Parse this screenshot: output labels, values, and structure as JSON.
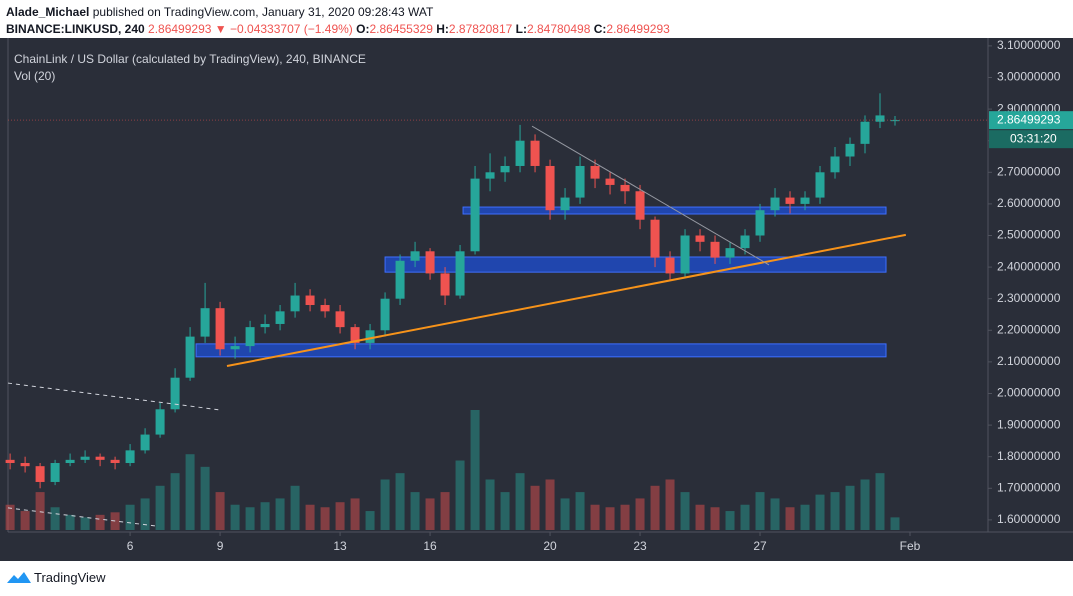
{
  "header": {
    "publisher": "Alade_Michael",
    "published": "published on TradingView.com, January 31, 2020 09:28:43 WAT",
    "symbol": "BINANCE:LINKUSD, 240",
    "last": "2.86499293",
    "arrow": "▼",
    "change": "−0.04333707 (−1.49%)",
    "o_label": "O:",
    "o": "2.86455329",
    "h_label": "H:",
    "h": "2.87820817",
    "l_label": "L:",
    "l": "2.84780498",
    "c_label": "C:",
    "c": "2.86499293"
  },
  "chart_data": {
    "type": "candlestick",
    "title": "ChainLink / US Dollar (calculated by TradingView), 240, BINANCE",
    "volume_label": "Vol (20)",
    "countdown": "03:31:20",
    "up_color": "#26a69a",
    "down_color": "#ef5350",
    "x": [
      2,
      2.5,
      3,
      3.5,
      4,
      4.5,
      5,
      5.5,
      6,
      6.5,
      7,
      7.5,
      8,
      8.5,
      9,
      9.5,
      10,
      10.5,
      11,
      11.5,
      12,
      12.5,
      13,
      13.5,
      14,
      14.5,
      15,
      15.5,
      16,
      16.5,
      17,
      17.5,
      18,
      18.5,
      19,
      19.5,
      20,
      20.5,
      21,
      21.5,
      22,
      22.5,
      23,
      23.5,
      24,
      24.5,
      25,
      25.5,
      26,
      26.5,
      27,
      27.5,
      28,
      28.5,
      29,
      29.5,
      30,
      30.5,
      31,
      31.5
    ],
    "open": [
      1.79,
      1.78,
      1.77,
      1.72,
      1.78,
      1.79,
      1.8,
      1.79,
      1.78,
      1.82,
      1.87,
      1.95,
      2.05,
      2.18,
      2.27,
      2.14,
      2.15,
      2.21,
      2.22,
      2.26,
      2.31,
      2.28,
      2.26,
      2.21,
      2.16,
      2.2,
      2.3,
      2.42,
      2.45,
      2.38,
      2.31,
      2.45,
      2.68,
      2.7,
      2.72,
      2.8,
      2.72,
      2.58,
      2.62,
      2.72,
      2.68,
      2.66,
      2.64,
      2.55,
      2.43,
      2.38,
      2.5,
      2.48,
      2.43,
      2.46,
      2.5,
      2.58,
      2.62,
      2.6,
      2.62,
      2.7,
      2.75,
      2.79,
      2.86,
      2.86455329
    ],
    "high": [
      1.81,
      1.8,
      1.78,
      1.79,
      1.81,
      1.82,
      1.81,
      1.8,
      1.84,
      1.89,
      1.97,
      2.08,
      2.21,
      2.35,
      2.29,
      2.18,
      2.23,
      2.25,
      2.28,
      2.35,
      2.33,
      2.3,
      2.28,
      2.22,
      2.22,
      2.32,
      2.44,
      2.48,
      2.46,
      2.4,
      2.47,
      2.72,
      2.76,
      2.75,
      2.85,
      2.82,
      2.74,
      2.65,
      2.75,
      2.74,
      2.7,
      2.68,
      2.66,
      2.56,
      2.45,
      2.52,
      2.52,
      2.5,
      2.48,
      2.52,
      2.6,
      2.65,
      2.64,
      2.64,
      2.72,
      2.78,
      2.81,
      2.88,
      2.95,
      2.87820817
    ],
    "low": [
      1.76,
      1.75,
      1.7,
      1.71,
      1.77,
      1.78,
      1.77,
      1.76,
      1.77,
      1.81,
      1.86,
      1.94,
      2.04,
      2.16,
      2.12,
      2.11,
      2.13,
      2.19,
      2.2,
      2.24,
      2.26,
      2.24,
      2.19,
      2.14,
      2.14,
      2.18,
      2.28,
      2.4,
      2.36,
      2.28,
      2.3,
      2.44,
      2.64,
      2.67,
      2.7,
      2.7,
      2.55,
      2.55,
      2.6,
      2.65,
      2.63,
      2.6,
      2.52,
      2.4,
      2.36,
      2.37,
      2.45,
      2.41,
      2.41,
      2.44,
      2.48,
      2.56,
      2.57,
      2.58,
      2.6,
      2.68,
      2.72,
      2.76,
      2.84,
      2.84780498
    ],
    "close": [
      1.78,
      1.77,
      1.72,
      1.78,
      1.79,
      1.8,
      1.79,
      1.78,
      1.82,
      1.87,
      1.95,
      2.05,
      2.18,
      2.27,
      2.14,
      2.15,
      2.21,
      2.22,
      2.26,
      2.31,
      2.28,
      2.26,
      2.21,
      2.16,
      2.2,
      2.3,
      2.42,
      2.45,
      2.38,
      2.31,
      2.45,
      2.68,
      2.7,
      2.72,
      2.8,
      2.72,
      2.58,
      2.62,
      2.72,
      2.68,
      2.66,
      2.64,
      2.55,
      2.43,
      2.38,
      2.5,
      2.48,
      2.43,
      2.46,
      2.5,
      2.58,
      2.62,
      2.6,
      2.62,
      2.7,
      2.75,
      2.79,
      2.86,
      2.88,
      2.86499293
    ],
    "volume": [
      20,
      15,
      30,
      18,
      12,
      10,
      12,
      14,
      20,
      25,
      35,
      45,
      60,
      50,
      30,
      20,
      18,
      22,
      25,
      35,
      20,
      18,
      22,
      25,
      15,
      40,
      45,
      30,
      25,
      30,
      55,
      95,
      40,
      30,
      45,
      35,
      40,
      25,
      30,
      20,
      18,
      20,
      25,
      35,
      40,
      30,
      20,
      18,
      15,
      20,
      30,
      25,
      18,
      20,
      28,
      30,
      35,
      40,
      45,
      10
    ],
    "xlim": [
      1.93,
      34.6
    ],
    "ylim": [
      1.568,
      3.125
    ],
    "xticks": [
      6,
      9,
      13,
      16,
      20,
      23,
      27,
      {
        "value": 32,
        "label": "Feb"
      }
    ],
    "yticks": [
      {
        "value": 1.6,
        "label": "1.60000000"
      },
      {
        "value": 1.7,
        "label": "1.70000000"
      },
      {
        "value": 1.8,
        "label": "1.80000000"
      },
      {
        "value": 1.9,
        "label": "1.90000000"
      },
      {
        "value": 2.0,
        "label": "2.00000000"
      },
      {
        "value": 2.1,
        "label": "2.10000000"
      },
      {
        "value": 2.2,
        "label": "2.20000000"
      },
      {
        "value": 2.3,
        "label": "2.30000000"
      },
      {
        "value": 2.4,
        "label": "2.40000000"
      },
      {
        "value": 2.5,
        "label": "2.50000000"
      },
      {
        "value": 2.6,
        "label": "2.60000000"
      },
      {
        "value": 2.7,
        "label": "2.70000000"
      },
      {
        "value": 2.8,
        "label": "2.80000000"
      },
      {
        "value": 2.9,
        "label": "2.90000000"
      },
      {
        "value": 3.0,
        "label": "3.00000000"
      },
      {
        "value": 3.1,
        "label": "3.10000000"
      }
    ],
    "zones": [
      {
        "from": 17.1,
        "to": 31.2,
        "low": 2.568,
        "high": 2.59
      },
      {
        "from": 14.5,
        "to": 31.2,
        "low": 2.384,
        "high": 2.432
      },
      {
        "from": 8.2,
        "to": 31.2,
        "low": 2.116,
        "high": 2.157
      }
    ],
    "lines": [
      {
        "x": [
          9.23,
          31.86
        ],
        "y": [
          2.087,
          2.502
        ],
        "color": "#f7931a",
        "dashed": false
      },
      {
        "x": [
          19.4,
          27.3
        ],
        "y": [
          2.846,
          2.407
        ],
        "color": "#9598a1",
        "dashed": false
      },
      {
        "x": [
          1.93,
          9
        ],
        "y": [
          2.033,
          1.948
        ],
        "color": "#d1d4dc",
        "dashed": true
      },
      {
        "x": [
          1.93,
          6.83
        ],
        "y": [
          1.638,
          1.581
        ],
        "color": "#d1d4dc",
        "dashed": true
      }
    ]
  },
  "footer": {
    "brand": "TradingView"
  }
}
